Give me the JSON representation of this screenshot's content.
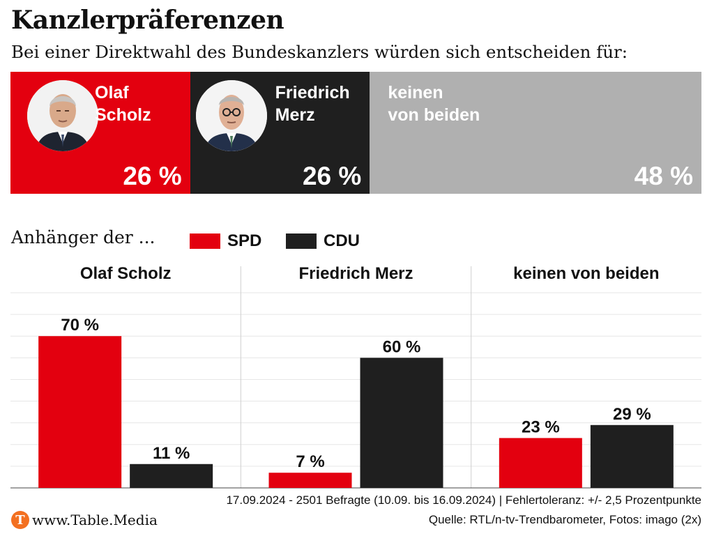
{
  "title": "Kanzlerpräferenzen",
  "subtitle": "Bei einer Direktwahl des Bundeskanzlers würden sich entscheiden für:",
  "colors": {
    "spd": "#e3000f",
    "cdu": "#1f1f1f",
    "none": "#b0b0b0",
    "brand": "#f37021"
  },
  "top": {
    "segments": [
      {
        "name": "Olaf\nScholz",
        "pct_label": "26 %",
        "value": 26,
        "color": "#e3000f",
        "portrait": "olaf-scholz-photo"
      },
      {
        "name": "Friedrich\nMerz",
        "pct_label": "26 %",
        "value": 26,
        "color": "#1f1f1f",
        "portrait": "friedrich-merz-photo"
      },
      {
        "name": "keinen\nvon beiden",
        "pct_label": "48 %",
        "value": 48,
        "color": "#b0b0b0"
      }
    ]
  },
  "legend": {
    "intro": "Anhänger der ...",
    "spd": "SPD",
    "cdu": "CDU"
  },
  "chart_data": {
    "type": "bar",
    "categories": [
      "Olaf Scholz",
      "Friedrich Merz",
      "keinen von beiden"
    ],
    "series": [
      {
        "name": "SPD",
        "values": [
          70,
          7,
          23
        ],
        "labels": [
          "70 %",
          "7 %",
          "23 %"
        ],
        "color": "#e3000f"
      },
      {
        "name": "CDU",
        "values": [
          11,
          60,
          29
        ],
        "labels": [
          "11 %",
          "60 %",
          "29 %"
        ],
        "color": "#1f1f1f"
      }
    ],
    "ylim": [
      0,
      90
    ],
    "grid": true
  },
  "footer": {
    "note": "17.09.2024 - 2501 Befragte (10.09. bis 16.09.2024) | Fehlertoleranz: +/- 2,5 Prozentpunkte",
    "source": "Quelle: RTL/n-tv-Trendbarometer, Fotos: imago (2x)",
    "brand": "www.Table.Media",
    "brand_logo": "T"
  }
}
